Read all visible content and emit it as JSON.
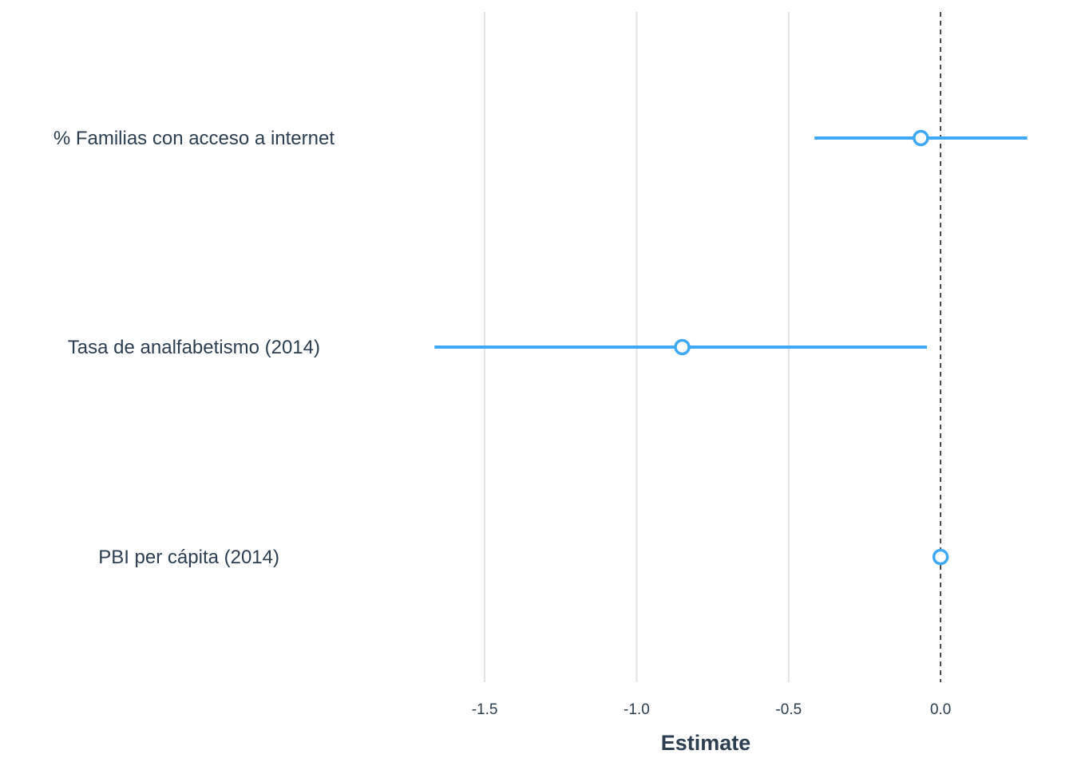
{
  "chart_data": {
    "type": "scatter",
    "subtype": "coefficient-plot",
    "title": "",
    "xlabel": "Estimate",
    "ylabel": "",
    "xlim": [
      -1.86,
      0.32
    ],
    "x_ticks": [
      -1.5,
      -1.0,
      -0.5,
      0.0
    ],
    "x_tick_labels": [
      "-1.5",
      "-1.0",
      "-0.5",
      "0.0"
    ],
    "grid": "vertical",
    "reference_line": {
      "x": 0,
      "style": "dashed"
    },
    "colors": {
      "series": "#3fa9f5",
      "text": "#2c3e50",
      "grid": "#e3e3e3",
      "reference": "#222222"
    },
    "categories": [
      "% Familias con acceso a internet",
      "Tasa de analfabetismo (2014)",
      "PBI per cápita (2014)"
    ],
    "series": [
      {
        "estimates": [
          -0.065,
          -0.85,
          0.0
        ],
        "ci_low": [
          -0.415,
          -1.665,
          0.0
        ],
        "ci_high": [
          0.285,
          -0.045,
          0.0
        ]
      }
    ]
  }
}
